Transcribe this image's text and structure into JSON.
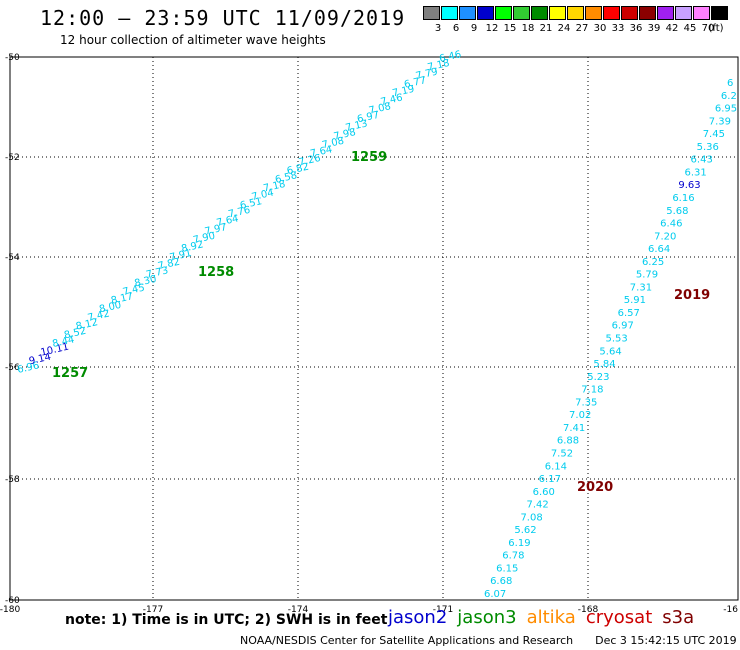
{
  "header": {
    "title": "12:00 – 23:59 UTC 11/09/2019",
    "subtitle": "12 hour collection of altimeter wave heights"
  },
  "legend": {
    "unit": "(ft)",
    "bins": [
      {
        "label": "3",
        "color": "#7f7f7f"
      },
      {
        "label": "6",
        "color": "#00ffff"
      },
      {
        "label": "9",
        "color": "#1e90ff"
      },
      {
        "label": "12",
        "color": "#0000cd"
      },
      {
        "label": "15",
        "color": "#00ff00"
      },
      {
        "label": "18",
        "color": "#32cd32"
      },
      {
        "label": "21",
        "color": "#008b00"
      },
      {
        "label": "24",
        "color": "#ffff00"
      },
      {
        "label": "27",
        "color": "#ffd700"
      },
      {
        "label": "30",
        "color": "#ff8c00"
      },
      {
        "label": "33",
        "color": "#ff0000"
      },
      {
        "label": "36",
        "color": "#cd0000"
      },
      {
        "label": "39",
        "color": "#8b0000"
      },
      {
        "label": "42",
        "color": "#a020f0"
      },
      {
        "label": "45",
        "color": "#c8a0ff"
      },
      {
        "label": "70",
        "color": "#ff80ff"
      },
      {
        "label": "",
        "color": "#000000"
      }
    ]
  },
  "axes": {
    "x_ticks": [
      "-180",
      "-177",
      "-174",
      "-171",
      "-168",
      "-16"
    ],
    "y_ticks": [
      "-50",
      "-52",
      "-54",
      "-56",
      "-58",
      "-60"
    ]
  },
  "colors": {
    "low": "#00ccee",
    "high": "#0000cd",
    "time_track1": "#008b00",
    "time_track2": "#800000"
  },
  "track1": {
    "wave_labels": [
      "6.96",
      "9.14",
      "10.11",
      "8.44",
      "8.52",
      "8.12",
      "7.42",
      "8.00",
      "8.17",
      "7.45",
      "8.30",
      "7.73",
      "7.82",
      "7.91",
      "8.92",
      "7.90",
      "7.97",
      "7.64",
      "7.76",
      "6.51",
      "7.04",
      "7.18",
      "6.58",
      "6.82",
      "7.26",
      "7.64",
      "7.08",
      "7.98",
      "7.13",
      "6.97",
      "7.08",
      "7.46",
      "7.19",
      "6.77",
      "7.79",
      "7.18",
      "6.46"
    ],
    "times": [
      "1257",
      "1258",
      "1259"
    ]
  },
  "track2": {
    "wave_labels": [
      "6.07",
      "6.68",
      "6.15",
      "6.78",
      "6.19",
      "5.62",
      "7.08",
      "7.42",
      "6.60",
      "6.17",
      "6.14",
      "7.52",
      "6.88",
      "7.41",
      "7.02",
      "7.35",
      "7.18",
      "5.23",
      "5.84",
      "5.64",
      "5.53",
      "6.97",
      "6.57",
      "5.91",
      "7.31",
      "5.79",
      "6.25",
      "6.64",
      "7.20",
      "6.46",
      "5.68",
      "6.16",
      "9.63",
      "6.31",
      "6.43",
      "5.36",
      "7.45",
      "7.39",
      "6.95",
      "6.2",
      "6"
    ],
    "times": [
      "2020",
      "2019"
    ]
  },
  "footer": {
    "note": "note:  1) Time is in UTC;  2) SWH is in feet",
    "satellites": [
      {
        "name": "jason2",
        "color": "#0000cd"
      },
      {
        "name": "jason3",
        "color": "#008b00"
      },
      {
        "name": "altika",
        "color": "#ff8c00"
      },
      {
        "name": "cryosat",
        "color": "#cd0000"
      },
      {
        "name": "s3a",
        "color": "#800000"
      }
    ],
    "credit": "NOAA/NESDIS Center for Satellite Applications and Research",
    "timestamp": "Dec  3 15:42:15 UTC 2019"
  }
}
